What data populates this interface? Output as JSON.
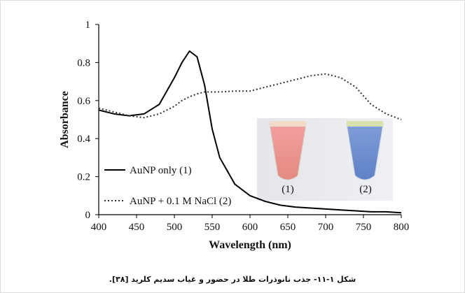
{
  "chart_data": {
    "type": "line",
    "x_label": "Wavelength (nm)",
    "y_label": "Absorbance",
    "x": [
      400,
      420,
      440,
      460,
      480,
      500,
      510,
      520,
      530,
      540,
      550,
      560,
      580,
      600,
      620,
      640,
      660,
      680,
      700,
      720,
      740,
      760,
      780,
      800
    ],
    "series": [
      {
        "name": "AuNP only (1)",
        "color": "#000000",
        "style": "solid",
        "values": [
          0.55,
          0.53,
          0.52,
          0.53,
          0.58,
          0.72,
          0.8,
          0.86,
          0.83,
          0.68,
          0.45,
          0.3,
          0.16,
          0.1,
          0.07,
          0.05,
          0.04,
          0.035,
          0.03,
          0.025,
          0.02,
          0.015,
          0.015,
          0.01
        ]
      },
      {
        "name": "AuNP + 0.1 M NaCl (2)",
        "color": "#333333",
        "style": "dotted",
        "values": [
          0.56,
          0.54,
          0.52,
          0.51,
          0.53,
          0.57,
          0.6,
          0.62,
          0.635,
          0.645,
          0.645,
          0.645,
          0.65,
          0.65,
          0.67,
          0.69,
          0.71,
          0.73,
          0.74,
          0.72,
          0.67,
          0.58,
          0.53,
          0.5
        ]
      }
    ],
    "xlim": [
      400,
      800
    ],
    "xticks": [
      400,
      450,
      500,
      550,
      600,
      650,
      700,
      750,
      800
    ],
    "ylim": [
      0,
      1
    ],
    "yticks": [
      0,
      0.2,
      0.4,
      0.6,
      0.8,
      1
    ],
    "grid": false,
    "legend": "lower-left",
    "inset_labels": [
      "(1)",
      "(2)"
    ],
    "caption": "شکل ۱-۱۱- جذب نانوذرات طلا در حضور و غیاب سدیم کلرید [۳۸]."
  }
}
